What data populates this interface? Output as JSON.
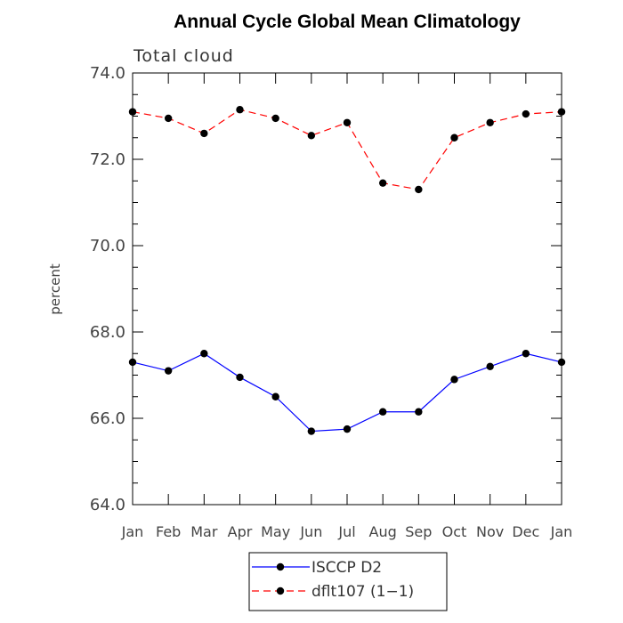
{
  "chart_data": {
    "type": "line",
    "title": "Annual Cycle Global Mean Climatology",
    "subtitle": "Total cloud",
    "xlabel": "",
    "ylabel": "percent",
    "categories": [
      "Jan",
      "Feb",
      "Mar",
      "Apr",
      "May",
      "Jun",
      "Jul",
      "Aug",
      "Sep",
      "Oct",
      "Nov",
      "Dec",
      "Jan"
    ],
    "ylim": [
      64.0,
      74.0
    ],
    "yticks": [
      "64.0",
      "66.0",
      "68.0",
      "70.0",
      "72.0",
      "74.0"
    ],
    "legend_position": "bottom",
    "series": [
      {
        "name": "ISCCP D2",
        "color": "#0000ff",
        "style": "solid",
        "values": [
          67.3,
          67.1,
          67.5,
          66.95,
          66.5,
          65.7,
          65.75,
          66.15,
          66.15,
          66.9,
          67.2,
          67.5,
          67.3
        ]
      },
      {
        "name": "dflt107 (1−1)",
        "color": "#ff0000",
        "style": "dashed",
        "values": [
          73.1,
          72.95,
          72.6,
          73.15,
          72.95,
          72.55,
          72.85,
          71.45,
          71.3,
          72.5,
          72.85,
          73.05,
          73.1
        ]
      }
    ]
  }
}
